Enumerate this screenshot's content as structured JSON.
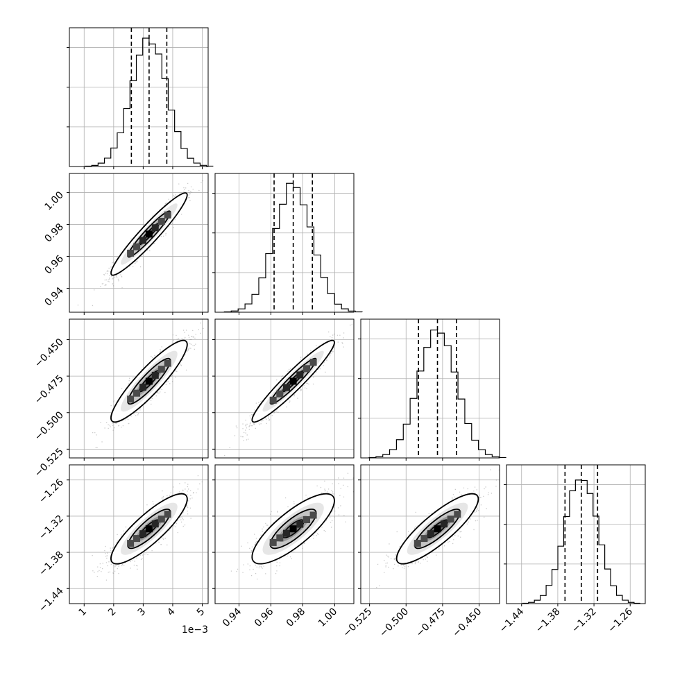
{
  "chart_data": {
    "type": "corner",
    "x_offset_label": "1e−3",
    "grid": true,
    "parameters": [
      {
        "range": [
          0.5,
          5.2
        ],
        "ticks": [
          1,
          2,
          3,
          4,
          5
        ],
        "tick_labels": [
          "1",
          "2",
          "3",
          "4",
          "5"
        ],
        "quantiles": [
          2.6,
          3.2,
          3.8
        ],
        "median": 3.2,
        "sigma": 0.6,
        "hist_ymax": 1.05
      },
      {
        "range": [
          0.925,
          1.012
        ],
        "ticks": [
          0.94,
          0.96,
          0.98,
          1.0
        ],
        "tick_labels": [
          "0.94",
          "0.96",
          "0.98",
          "1.00"
        ],
        "quantiles": [
          0.962,
          0.974,
          0.986
        ],
        "median": 0.974,
        "sigma": 0.012,
        "hist_ymax": 1.05
      },
      {
        "range": [
          -0.531,
          -0.436
        ],
        "ticks": [
          -0.525,
          -0.5,
          -0.475,
          -0.45
        ],
        "tick_labels": [
          "−0.525",
          "−0.500",
          "−0.475",
          "−0.450"
        ],
        "quantiles": [
          -0.4915,
          -0.4785,
          -0.4655
        ],
        "median": -0.4785,
        "sigma": 0.013,
        "hist_ymax": 1.05
      },
      {
        "range": [
          -1.465,
          -1.235
        ],
        "ticks": [
          -1.44,
          -1.38,
          -1.32,
          -1.26
        ],
        "tick_labels": [
          "−1.44",
          "−1.38",
          "−1.32",
          "−1.26"
        ],
        "quantiles": [
          -1.368,
          -1.341,
          -1.314
        ],
        "median": -1.341,
        "sigma": 0.027,
        "hist_ymax": 1.05
      }
    ],
    "correlations": {
      "1-0": 0.95,
      "2-0": 0.9,
      "2-1": 0.95,
      "3-0": 0.85,
      "3-1": 0.8,
      "3-2": 0.85
    }
  }
}
